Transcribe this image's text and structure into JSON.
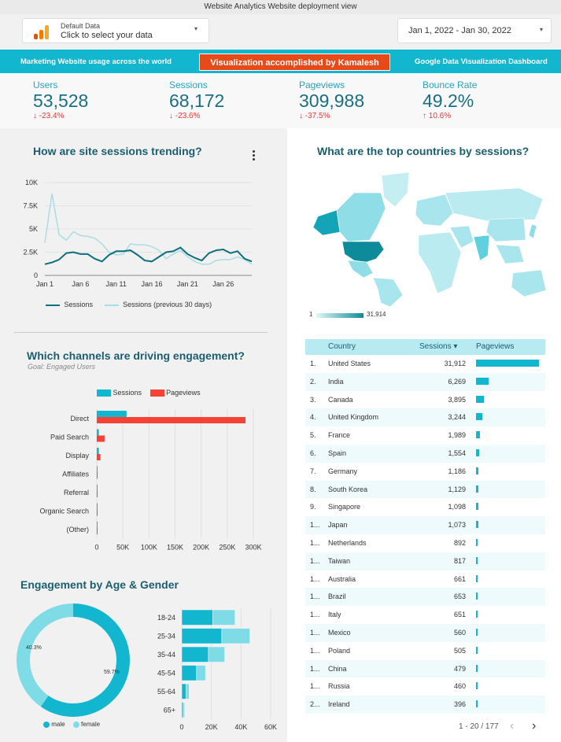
{
  "header": {
    "title": "Website Analytics Website deployment view",
    "data_source_label": "Default Data",
    "data_source_action": "Click to select your data",
    "date_range": "Jan 1, 2022 - Jan 30, 2022"
  },
  "banner": {
    "left": "Marketing Website usage across the world",
    "center": "Visualization accomplished by Kamalesh",
    "right": "Google Data Visualization Dashboard"
  },
  "kpis": [
    {
      "label": "Users",
      "value": "53,528",
      "delta": "-23.4%"
    },
    {
      "label": "Sessions",
      "value": "68,172",
      "delta": "-23.6%"
    },
    {
      "label": "Pageviews",
      "value": "309,988",
      "delta": "-37.5%"
    },
    {
      "label": "Bounce Rate",
      "value": "49.2%",
      "delta": "10.6%"
    }
  ],
  "trend": {
    "title": "How are site sessions trending?",
    "legend_current": "Sessions",
    "legend_previous": "Sessions (previous 30 days)"
  },
  "map": {
    "title": "What are the top countries by sessions?",
    "scale_min": "1",
    "scale_max": "31,914"
  },
  "channels": {
    "title": "Which channels are driving engagement?",
    "subtitle": "Goal: Engaged Users",
    "legend_a": "Sessions",
    "legend_b": "Pageviews"
  },
  "age": {
    "title": "Engagement by Age & Gender",
    "legend_male": "male",
    "legend_female": "female",
    "pct_male": "59.7%",
    "pct_female": "40.3%"
  },
  "table": {
    "col_country": "Country",
    "col_sessions": "Sessions ▾",
    "col_pageviews": "Pageviews",
    "pagination": "1 - 20 / 177",
    "rows": [
      {
        "rank": "1.",
        "country": "United States",
        "sessions": "31,912",
        "n": 31912
      },
      {
        "rank": "2.",
        "country": "India",
        "sessions": "6,269",
        "n": 6269
      },
      {
        "rank": "3.",
        "country": "Canada",
        "sessions": "3,895",
        "n": 3895
      },
      {
        "rank": "4.",
        "country": "United Kingdom",
        "sessions": "3,244",
        "n": 3244
      },
      {
        "rank": "5.",
        "country": "France",
        "sessions": "1,989",
        "n": 1989
      },
      {
        "rank": "6.",
        "country": "Spain",
        "sessions": "1,554",
        "n": 1554
      },
      {
        "rank": "7.",
        "country": "Germany",
        "sessions": "1,186",
        "n": 1186
      },
      {
        "rank": "8.",
        "country": "South Korea",
        "sessions": "1,129",
        "n": 1129
      },
      {
        "rank": "9.",
        "country": "Singapore",
        "sessions": "1,098",
        "n": 1098
      },
      {
        "rank": "1...",
        "country": "Japan",
        "sessions": "1,073",
        "n": 1073
      },
      {
        "rank": "1...",
        "country": "Netherlands",
        "sessions": "892",
        "n": 892
      },
      {
        "rank": "1...",
        "country": "Taiwan",
        "sessions": "817",
        "n": 817
      },
      {
        "rank": "1...",
        "country": "Australia",
        "sessions": "661",
        "n": 661
      },
      {
        "rank": "1...",
        "country": "Brazil",
        "sessions": "653",
        "n": 653
      },
      {
        "rank": "1...",
        "country": "Italy",
        "sessions": "651",
        "n": 651
      },
      {
        "rank": "1...",
        "country": "Mexico",
        "sessions": "560",
        "n": 560
      },
      {
        "rank": "1...",
        "country": "Poland",
        "sessions": "505",
        "n": 505
      },
      {
        "rank": "1...",
        "country": "China",
        "sessions": "479",
        "n": 479
      },
      {
        "rank": "1...",
        "country": "Russia",
        "sessions": "460",
        "n": 460
      },
      {
        "rank": "2...",
        "country": "Ireland",
        "sessions": "396",
        "n": 396
      }
    ]
  },
  "colors": {
    "accent": "#13b6cf",
    "dark_teal": "#0e8b9a",
    "red": "#f44336",
    "light_teal": "#7fdbe6",
    "banner_red": "#e64a19"
  },
  "chart_data": [
    {
      "type": "line",
      "title": "How are site sessions trending?",
      "x": [
        "Jan 1",
        "Jan 2",
        "Jan 3",
        "Jan 4",
        "Jan 5",
        "Jan 6",
        "Jan 7",
        "Jan 8",
        "Jan 9",
        "Jan 10",
        "Jan 11",
        "Jan 12",
        "Jan 13",
        "Jan 14",
        "Jan 15",
        "Jan 16",
        "Jan 17",
        "Jan 18",
        "Jan 19",
        "Jan 20",
        "Jan 21",
        "Jan 22",
        "Jan 23",
        "Jan 24",
        "Jan 25",
        "Jan 26",
        "Jan 27",
        "Jan 28",
        "Jan 29",
        "Jan 30"
      ],
      "x_ticks": [
        "Jan 1",
        "Jan 6",
        "Jan 11",
        "Jan 16",
        "Jan 21",
        "Jan 26"
      ],
      "series": [
        {
          "name": "Sessions",
          "values": [
            1200,
            1400,
            1700,
            2400,
            2500,
            2300,
            2300,
            1800,
            1500,
            2200,
            2600,
            2600,
            2700,
            2200,
            1600,
            1500,
            2000,
            2500,
            2600,
            3000,
            2300,
            1900,
            1600,
            2400,
            2700,
            2800,
            2400,
            2600,
            1800,
            1500
          ]
        },
        {
          "name": "Sessions (previous 30 days)",
          "values": [
            3500,
            8800,
            4400,
            3800,
            4700,
            4300,
            4200,
            4000,
            3400,
            2500,
            2200,
            2300,
            3400,
            3300,
            3300,
            3100,
            2700,
            1800,
            2300,
            2700,
            2000,
            1500,
            1200,
            1200,
            1600,
            1700,
            1700,
            2000,
            1700,
            1200
          ]
        }
      ],
      "yticks": [
        "0",
        "2.5K",
        "5K",
        "7.5K",
        "10K"
      ],
      "ylim": [
        0,
        10000
      ]
    },
    {
      "type": "bar",
      "orientation": "horizontal",
      "title": "Which channels are driving engagement?",
      "categories": [
        "Direct",
        "Paid Search",
        "Display",
        "Affiliates",
        "Referral",
        "Organic Search",
        "(Other)"
      ],
      "series": [
        {
          "name": "Sessions",
          "values": [
            57000,
            4000,
            4000,
            500,
            500,
            500,
            300
          ]
        },
        {
          "name": "Pageviews",
          "values": [
            285000,
            15000,
            7000,
            800,
            800,
            600,
            400
          ]
        }
      ],
      "xticks": [
        "0",
        "50K",
        "100K",
        "150K",
        "200K",
        "250K",
        "300K"
      ],
      "xlim": [
        0,
        300000
      ]
    },
    {
      "type": "pie",
      "title": "Engagement by Age & Gender",
      "labels": [
        "male",
        "female"
      ],
      "values": [
        59.7,
        40.3
      ]
    },
    {
      "type": "bar",
      "orientation": "horizontal",
      "stacked": true,
      "categories": [
        "18-24",
        "25-34",
        "35-44",
        "45-54",
        "55-64",
        "65+"
      ],
      "series": [
        {
          "name": "male",
          "values": [
            21000,
            27000,
            18000,
            10000,
            3000,
            1000
          ]
        },
        {
          "name": "female",
          "values": [
            15000,
            19000,
            11000,
            6000,
            2000,
            1000
          ]
        }
      ],
      "xticks": [
        "0",
        "20K",
        "40K",
        "60K"
      ],
      "xlim": [
        0,
        60000
      ]
    },
    {
      "type": "table",
      "title": "What are the top countries by sessions?",
      "columns": [
        "Country",
        "Sessions",
        "Pageviews"
      ],
      "sessions_max": 31912
    }
  ]
}
